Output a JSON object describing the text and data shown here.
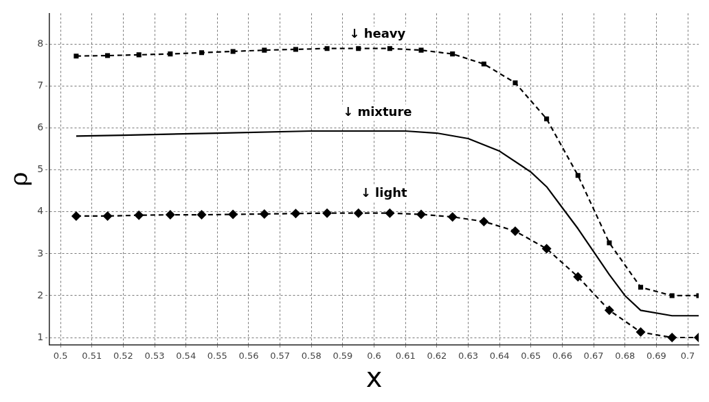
{
  "chart_data": {
    "type": "line",
    "xlabel": "x",
    "ylabel": "ρ",
    "xlim": [
      0.4965,
      0.7035
    ],
    "ylim": [
      0.83,
      8.74
    ],
    "xticks": [
      {
        "value": 0.5,
        "label": "0.5"
      },
      0.51,
      0.52,
      0.53,
      0.54,
      0.55,
      0.56,
      0.57,
      0.58,
      0.59,
      {
        "value": 0.6,
        "label": "0.6"
      },
      0.61,
      0.62,
      0.63,
      0.64,
      0.65,
      0.66,
      0.67,
      0.68,
      0.69,
      {
        "value": 0.7,
        "label": "0.7"
      }
    ],
    "yticks": [
      1,
      2,
      3,
      4,
      5,
      6,
      7,
      8
    ],
    "grid": true,
    "legend": false,
    "series": [
      {
        "color": "#000000",
        "marker": "square",
        "line_style": "dashed",
        "x": [
          0.505,
          0.515,
          0.525,
          0.535,
          0.545,
          0.555,
          0.565,
          0.575,
          0.585,
          0.595,
          0.605,
          0.615,
          0.625,
          0.635,
          0.645,
          0.655,
          0.665,
          0.675,
          0.685,
          0.695,
          0.7035
        ],
        "values": [
          7.72,
          7.73,
          7.75,
          7.77,
          7.8,
          7.83,
          7.86,
          7.88,
          7.9,
          7.9,
          7.9,
          7.86,
          7.77,
          7.53,
          7.08,
          6.22,
          4.87,
          3.26,
          2.2,
          2.0,
          2.0
        ]
      },
      {
        "color": "#000000",
        "marker": "none",
        "line_style": "solid",
        "x": [
          0.505,
          0.52,
          0.55,
          0.58,
          0.61,
          0.62,
          0.63,
          0.64,
          0.65,
          0.655,
          0.66,
          0.665,
          0.67,
          0.675,
          0.68,
          0.685,
          0.695,
          0.7035
        ],
        "values": [
          5.81,
          5.83,
          5.88,
          5.93,
          5.93,
          5.88,
          5.75,
          5.45,
          4.95,
          4.6,
          4.1,
          3.6,
          3.05,
          2.5,
          2.0,
          1.65,
          1.52,
          1.52
        ]
      },
      {
        "color": "#000000",
        "marker": "diamond",
        "line_style": "dashed",
        "x": [
          0.505,
          0.515,
          0.525,
          0.535,
          0.545,
          0.555,
          0.565,
          0.575,
          0.585,
          0.595,
          0.605,
          0.615,
          0.625,
          0.635,
          0.645,
          0.655,
          0.665,
          0.675,
          0.685,
          0.695,
          0.7035
        ],
        "values": [
          3.9,
          3.9,
          3.92,
          3.93,
          3.93,
          3.94,
          3.95,
          3.96,
          3.97,
          3.97,
          3.97,
          3.94,
          3.88,
          3.77,
          3.54,
          3.12,
          2.45,
          1.65,
          1.13,
          1.0,
          1.0
        ]
      }
    ],
    "annotations": [
      "↓ heavy",
      "↓ mixture",
      "↓ light"
    ]
  }
}
